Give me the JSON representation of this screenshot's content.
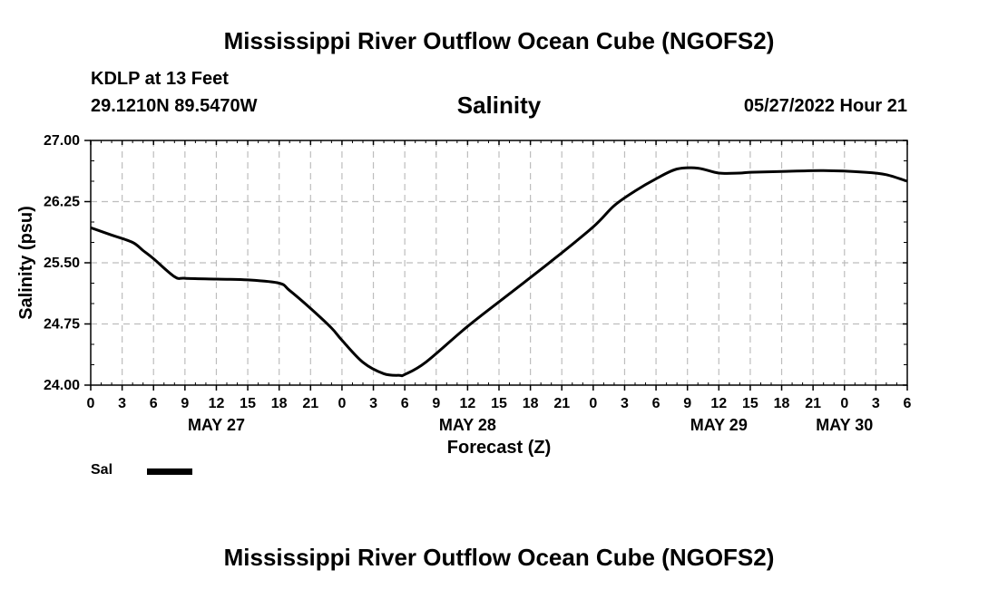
{
  "header": {
    "title": "Mississippi River Outflow Ocean Cube (NGOFS2)",
    "station": "KDLP at 13 Feet",
    "coords": "29.1210N  89.5470W",
    "variable": "Salinity",
    "run_time": "05/27/2022 Hour 21"
  },
  "footer": {
    "title": "Mississippi River Outflow Ocean Cube (NGOFS2)"
  },
  "legend": {
    "label": "Sal",
    "color": "#000000"
  },
  "chart_data": {
    "type": "line",
    "title": "Salinity",
    "xlabel": "Forecast (Z)",
    "ylabel": "Salinity (psu)",
    "ylim": [
      24.0,
      27.0
    ],
    "yticks": [
      "24.00",
      "24.75",
      "25.50",
      "26.25",
      "27.00"
    ],
    "xlim_hours": [
      0,
      78
    ],
    "xtick_labels": [
      "0",
      "3",
      "6",
      "9",
      "12",
      "15",
      "18",
      "21",
      "0",
      "3",
      "6",
      "9",
      "12",
      "15",
      "18",
      "21",
      "0",
      "3",
      "6",
      "9",
      "12",
      "15",
      "18",
      "21",
      "0",
      "3",
      "6"
    ],
    "day_labels": [
      {
        "label": "MAY 27",
        "hour": 12
      },
      {
        "label": "MAY 28",
        "hour": 36
      },
      {
        "label": "MAY 29",
        "hour": 60
      },
      {
        "label": "MAY 30",
        "hour": 72
      }
    ],
    "grid": true,
    "series": [
      {
        "name": "Sal",
        "color": "#000000",
        "x": [
          0,
          2,
          4,
          5,
          6,
          8,
          9,
          12,
          15,
          18,
          19,
          21,
          23,
          24,
          26,
          28,
          29.5,
          30,
          32,
          36,
          40,
          44,
          48,
          50,
          52,
          54,
          56,
          58,
          60,
          62,
          63,
          66,
          70,
          74,
          76,
          78
        ],
        "y": [
          25.93,
          25.84,
          25.75,
          25.65,
          25.55,
          25.33,
          25.31,
          25.3,
          25.29,
          25.25,
          25.16,
          24.94,
          24.7,
          24.55,
          24.28,
          24.14,
          24.12,
          24.13,
          24.28,
          24.72,
          25.12,
          25.52,
          25.94,
          26.2,
          26.38,
          26.53,
          26.65,
          26.66,
          26.6,
          26.6,
          26.61,
          26.62,
          26.63,
          26.61,
          26.58,
          26.5
        ]
      }
    ]
  }
}
